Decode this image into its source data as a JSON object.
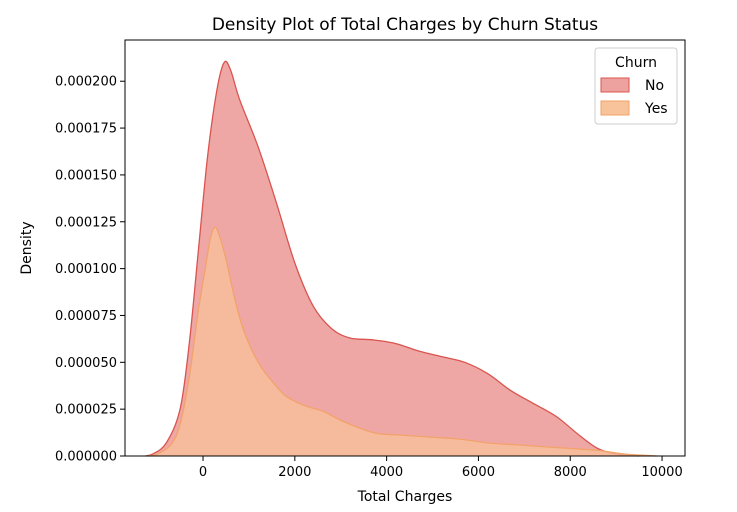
{
  "chart_data": {
    "type": "area",
    "title": "Density Plot of Total Charges by Churn Status",
    "xlabel": "Total Charges",
    "ylabel": "Density",
    "xlim": [
      -1700,
      10500
    ],
    "ylim": [
      0,
      0.000222
    ],
    "x_ticks": [
      0,
      2000,
      4000,
      6000,
      8000,
      10000
    ],
    "x_tick_labels": [
      "0",
      "2000",
      "4000",
      "6000",
      "8000",
      "10000"
    ],
    "y_ticks": [
      0,
      2.5e-05,
      5e-05,
      7.5e-05,
      0.0001,
      0.000125,
      0.00015,
      0.000175,
      0.0002
    ],
    "y_tick_labels": [
      "0.000000",
      "0.000025",
      "0.000050",
      "0.000075",
      "0.000100",
      "0.000125",
      "0.000150",
      "0.000175",
      "0.000200"
    ],
    "grid": false,
    "legend": {
      "title": "Churn",
      "position": "top-right"
    },
    "series": [
      {
        "name": "No",
        "fill": "#eda29f",
        "stroke": "#d9544f",
        "points": [
          [
            -1250,
            0
          ],
          [
            -1100,
            1e-06
          ],
          [
            -800,
            7e-06
          ],
          [
            -500,
            2.5e-05
          ],
          [
            -300,
            6e-05
          ],
          [
            -100,
            0.00011
          ],
          [
            100,
            0.00016
          ],
          [
            300,
            0.000195
          ],
          [
            460,
            0.00021
          ],
          [
            600,
            0.000206
          ],
          [
            800,
            0.00019
          ],
          [
            1200,
            0.000165
          ],
          [
            1600,
            0.000135
          ],
          [
            2000,
            0.000103
          ],
          [
            2400,
            8e-05
          ],
          [
            2800,
            6.8e-05
          ],
          [
            3200,
            6.3e-05
          ],
          [
            3700,
            6.2e-05
          ],
          [
            4200,
            6e-05
          ],
          [
            4700,
            5.6e-05
          ],
          [
            5200,
            5.3e-05
          ],
          [
            5700,
            5e-05
          ],
          [
            6200,
            4.4e-05
          ],
          [
            6700,
            3.5e-05
          ],
          [
            7200,
            2.8e-05
          ],
          [
            7700,
            2.1e-05
          ],
          [
            8200,
            1.1e-05
          ],
          [
            8600,
            4e-06
          ],
          [
            9000,
            1e-06
          ],
          [
            9500,
            0
          ]
        ]
      },
      {
        "name": "Yes",
        "fill": "#f8c29a",
        "stroke": "#f2a36b",
        "points": [
          [
            -1200,
            0
          ],
          [
            -1000,
            1e-06
          ],
          [
            -700,
            6e-06
          ],
          [
            -500,
            1.7e-05
          ],
          [
            -300,
            4.2e-05
          ],
          [
            -100,
            7.8e-05
          ],
          [
            50,
            0.0001
          ],
          [
            150,
            0.000115
          ],
          [
            250,
            0.000122
          ],
          [
            350,
            0.000118
          ],
          [
            500,
            0.000105
          ],
          [
            700,
            8.3e-05
          ],
          [
            900,
            6.6e-05
          ],
          [
            1200,
            5e-05
          ],
          [
            1500,
            4e-05
          ],
          [
            1800,
            3.2e-05
          ],
          [
            2200,
            2.7e-05
          ],
          [
            2600,
            2.4e-05
          ],
          [
            3000,
            1.9e-05
          ],
          [
            3400,
            1.5e-05
          ],
          [
            3800,
            1.2e-05
          ],
          [
            4400,
            1.1e-05
          ],
          [
            5000,
            1e-05
          ],
          [
            5600,
            9e-06
          ],
          [
            6200,
            7e-06
          ],
          [
            6800,
            6e-06
          ],
          [
            7400,
            5e-06
          ],
          [
            8000,
            4e-06
          ],
          [
            8600,
            3e-06
          ],
          [
            9200,
            1e-06
          ],
          [
            9900,
            0
          ]
        ]
      }
    ]
  }
}
